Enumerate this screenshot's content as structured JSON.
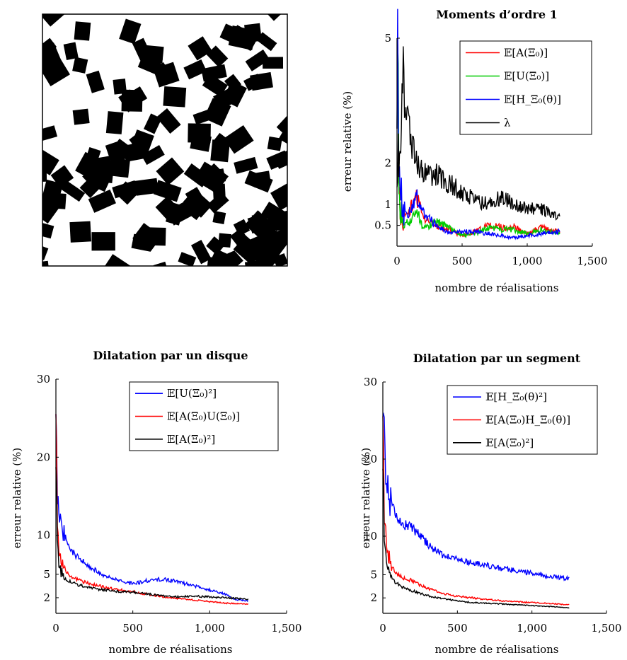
{
  "colors": {
    "red": "#ff0000",
    "green": "#00cc00",
    "blue": "#0000ff",
    "black": "#000000"
  },
  "figure_image": {
    "description_icon": "boolean-model-squares-image"
  },
  "chart_data": [
    {
      "type": "line",
      "title": "Moments d’ordre 1",
      "xlabel": "nombre de réalisations",
      "ylabel": "erreur relative (%)",
      "xlim": [
        0,
        1500
      ],
      "ylim": [
        0,
        5
      ],
      "xticks": [
        "0",
        "500",
        "1,000",
        "1,500"
      ],
      "xtick_values": [
        0,
        500,
        1000,
        1500
      ],
      "yticks": [
        "0.5",
        "1",
        "2",
        "5"
      ],
      "ytick_values": [
        0.5,
        1,
        2,
        5
      ],
      "legend_position": "top-right",
      "series": [
        {
          "name": "𝔼[A(Ξ₀)]",
          "color": "#ff0000",
          "x": [
            0,
            20,
            50,
            100,
            150,
            200,
            300,
            400,
            500,
            600,
            700,
            800,
            900,
            1000,
            1100,
            1250
          ],
          "y": [
            5,
            1.0,
            0.6,
            0.9,
            1.2,
            0.7,
            0.5,
            0.4,
            0.25,
            0.35,
            0.5,
            0.45,
            0.45,
            0.3,
            0.45,
            0.35
          ]
        },
        {
          "name": "𝔼[U(Ξ₀)]",
          "color": "#00cc00",
          "x": [
            0,
            20,
            50,
            100,
            150,
            200,
            300,
            400,
            500,
            600,
            700,
            800,
            900,
            1000,
            1100,
            1250
          ],
          "y": [
            5,
            1.0,
            0.5,
            0.6,
            0.9,
            0.4,
            0.6,
            0.45,
            0.25,
            0.3,
            0.45,
            0.4,
            0.4,
            0.3,
            0.4,
            0.3
          ]
        },
        {
          "name": "𝔼[H_Ξ₀(θ)]",
          "color": "#0000ff",
          "x": [
            0,
            20,
            50,
            100,
            150,
            200,
            300,
            400,
            500,
            600,
            700,
            800,
            900,
            1000,
            1100,
            1250
          ],
          "y": [
            5,
            2.0,
            0.8,
            0.8,
            1.2,
            0.8,
            0.5,
            0.3,
            0.35,
            0.35,
            0.3,
            0.25,
            0.2,
            0.25,
            0.3,
            0.35
          ]
        },
        {
          "name": "λ",
          "color": "#000000",
          "x": [
            0,
            20,
            50,
            100,
            150,
            200,
            300,
            400,
            500,
            600,
            700,
            800,
            900,
            1000,
            1100,
            1250
          ],
          "y": [
            2.5,
            3.0,
            3.4,
            2.6,
            2.0,
            1.8,
            1.7,
            1.5,
            1.3,
            1.1,
            1.0,
            1.2,
            1.0,
            0.9,
            0.9,
            0.7
          ]
        }
      ]
    },
    {
      "type": "line",
      "title": "Dilatation par un disque",
      "xlabel": "nombre de réalisations",
      "ylabel": "erreur relative (%)",
      "xlim": [
        0,
        1500
      ],
      "ylim": [
        0,
        30
      ],
      "xticks": [
        "0",
        "500",
        "1,000",
        "1,500"
      ],
      "xtick_values": [
        0,
        500,
        1000,
        1500
      ],
      "yticks": [
        "2",
        "5",
        "10",
        "20",
        "30"
      ],
      "ytick_values": [
        2,
        5,
        10,
        20,
        30
      ],
      "legend_position": "top-right",
      "series": [
        {
          "name": "𝔼[U(Ξ₀)²]",
          "color": "#0000ff",
          "x": [
            0,
            10,
            30,
            60,
            100,
            150,
            200,
            300,
            400,
            500,
            600,
            700,
            800,
            900,
            1000,
            1100,
            1150,
            1250
          ],
          "y": [
            30,
            14,
            12,
            10,
            8,
            7,
            6.3,
            5,
            4.2,
            3.8,
            4.2,
            4.4,
            4.0,
            3.5,
            3.0,
            2.5,
            1.8,
            1.6
          ]
        },
        {
          "name": "𝔼[A(Ξ₀)U(Ξ₀)]",
          "color": "#ff0000",
          "x": [
            0,
            10,
            30,
            60,
            100,
            150,
            200,
            300,
            400,
            500,
            600,
            700,
            800,
            900,
            1000,
            1100,
            1250
          ],
          "y": [
            30,
            10,
            7,
            5.5,
            4.8,
            4.2,
            3.9,
            3.4,
            3.0,
            2.8,
            2.4,
            2.1,
            1.9,
            1.7,
            1.5,
            1.3,
            1.2
          ]
        },
        {
          "name": "𝔼[A(Ξ₀)²]",
          "color": "#000000",
          "x": [
            0,
            10,
            30,
            60,
            100,
            150,
            200,
            300,
            400,
            500,
            600,
            700,
            800,
            900,
            1000,
            1100,
            1250
          ],
          "y": [
            22,
            8,
            5.5,
            4.5,
            4.0,
            3.6,
            3.4,
            3.0,
            2.8,
            2.7,
            2.5,
            2.2,
            2.1,
            2.2,
            2.1,
            2.0,
            1.8
          ]
        }
      ]
    },
    {
      "type": "line",
      "title": "Dilatation par un segment",
      "xlabel": "nombre de réalisations",
      "ylabel": "erreur relative (%)",
      "xlim": [
        0,
        1500
      ],
      "ylim": [
        0,
        30
      ],
      "xticks": [
        "0",
        "500",
        "1,000",
        "1,500"
      ],
      "xtick_values": [
        0,
        500,
        1000,
        1500
      ],
      "yticks": [
        "2",
        "5",
        "10",
        "20",
        "30"
      ],
      "ytick_values": [
        2,
        5,
        10,
        20,
        30
      ],
      "legend_position": "top-right",
      "series": [
        {
          "name": "𝔼[H_Ξ₀(θ)²]",
          "color": "#0000ff",
          "x": [
            0,
            10,
            30,
            60,
            100,
            150,
            200,
            300,
            400,
            500,
            600,
            700,
            800,
            900,
            1000,
            1100,
            1250
          ],
          "y": [
            30,
            22,
            16,
            14,
            12,
            11.5,
            11,
            9,
            7.5,
            7,
            6.5,
            6.2,
            5.8,
            5.5,
            5.2,
            4.8,
            4.5
          ]
        },
        {
          "name": "𝔼[A(Ξ₀)H_Ξ₀(θ)]",
          "color": "#ff0000",
          "x": [
            0,
            10,
            30,
            60,
            100,
            150,
            200,
            300,
            400,
            500,
            600,
            700,
            800,
            900,
            1000,
            1100,
            1250
          ],
          "y": [
            30,
            12,
            8,
            6,
            5,
            4.5,
            4.2,
            3.2,
            2.6,
            2.2,
            2.0,
            1.8,
            1.6,
            1.5,
            1.4,
            1.3,
            1.1
          ]
        },
        {
          "name": "𝔼[A(Ξ₀)²]",
          "color": "#000000",
          "x": [
            0,
            10,
            30,
            60,
            100,
            150,
            200,
            300,
            400,
            500,
            600,
            700,
            800,
            900,
            1000,
            1100,
            1250
          ],
          "y": [
            22,
            9,
            6,
            4.5,
            3.8,
            3.2,
            2.9,
            2.3,
            1.9,
            1.6,
            1.4,
            1.3,
            1.2,
            1.1,
            1.0,
            0.9,
            0.7
          ]
        }
      ]
    }
  ]
}
